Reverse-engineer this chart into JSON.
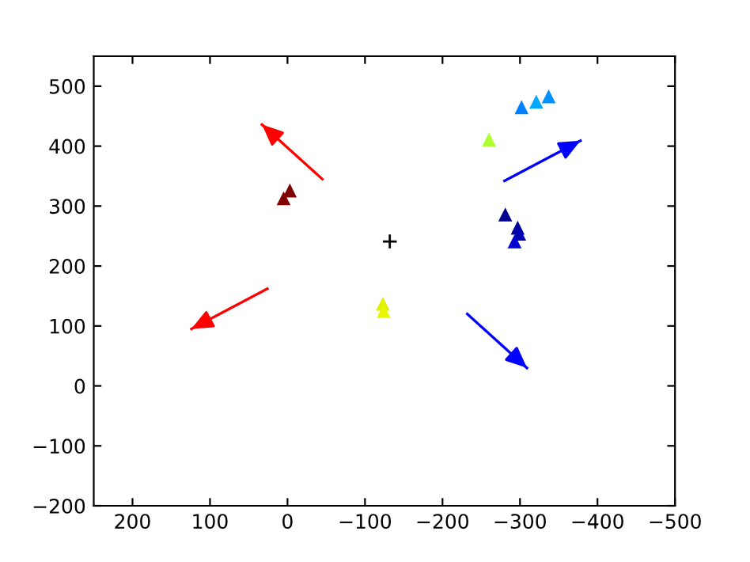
{
  "chart_data": {
    "type": "scatter",
    "xlim": [
      250,
      -500
    ],
    "ylim": [
      -200,
      550
    ],
    "xticks": [
      200,
      100,
      0,
      {
        "value": -100,
        "label": "−100"
      },
      {
        "value": -200,
        "label": "−200"
      },
      {
        "value": -300,
        "label": "−300"
      },
      {
        "value": -400,
        "label": "−400"
      },
      {
        "value": -500,
        "label": "−500"
      }
    ],
    "yticks": [
      {
        "value": -200,
        "label": "−200"
      },
      {
        "value": -100,
        "label": "−100"
      },
      0,
      100,
      200,
      300,
      400,
      500
    ],
    "grid": false,
    "legend": false,
    "series": [
      {
        "marker": "triangle",
        "x": [
          5,
          -3,
          -123,
          -124,
          -260,
          -302,
          -321,
          -337,
          -281,
          -297,
          -299,
          -293
        ],
        "values": [
          313,
          326,
          137,
          125,
          411,
          465,
          474,
          483,
          286,
          264,
          254,
          241
        ],
        "colors": [
          "#800000",
          "#800000",
          "#e0f000",
          "#e8f800",
          "#adff2f",
          "#0080ff",
          "#00a8ff",
          "#0090ff",
          "#000090",
          "#0000a0",
          "#0000b0",
          "#0000d0"
        ]
      },
      {
        "marker": "cross",
        "color": "#000000",
        "x": [
          -132
        ],
        "values": [
          241
        ]
      },
      {
        "type": "line",
        "color": "#ff0000",
        "x": [
          -45,
          33
        ],
        "values": [
          345,
          436
        ]
      },
      {
        "type": "line",
        "color": "#ff0000",
        "x": [
          26,
          124
        ],
        "values": [
          162,
          95
        ]
      },
      {
        "type": "line",
        "color": "#0000ff",
        "x": [
          -280,
          -378
        ],
        "values": [
          342,
          409
        ]
      },
      {
        "type": "line",
        "color": "#0000ff",
        "x": [
          -232,
          -309
        ],
        "values": [
          120,
          30
        ]
      }
    ]
  }
}
